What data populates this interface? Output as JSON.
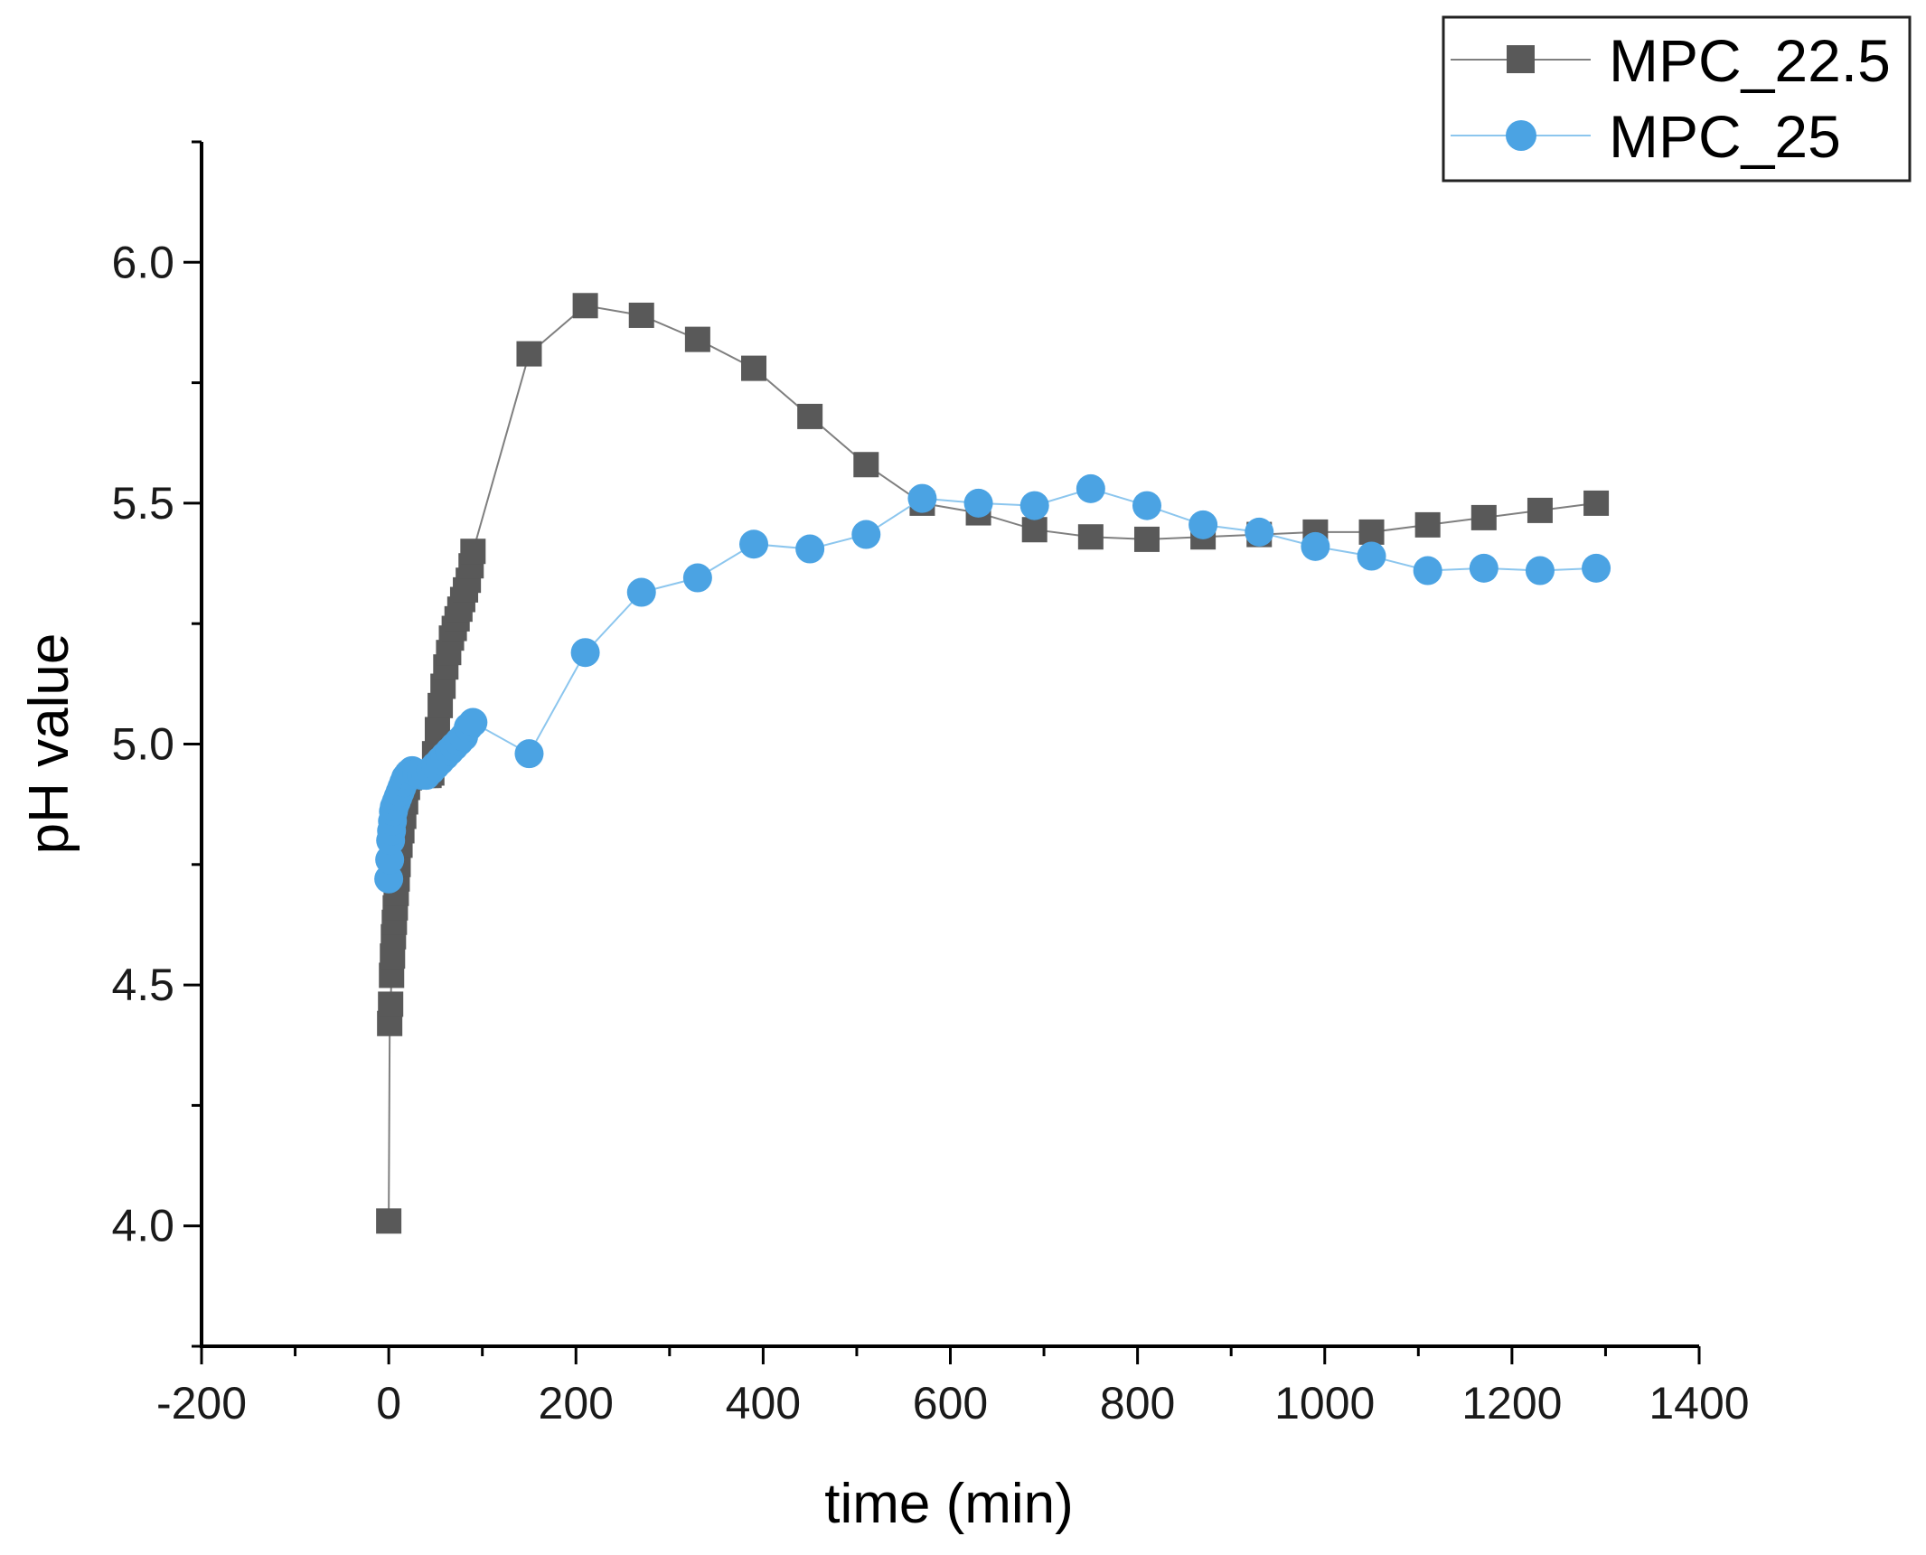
{
  "chart_data": {
    "type": "line",
    "title": "",
    "xlabel": "time (min)",
    "ylabel": "pH value",
    "xlim": [
      -200,
      1400
    ],
    "ylim": [
      3.75,
      6.25
    ],
    "x_ticks": [
      -200,
      0,
      200,
      400,
      600,
      800,
      1000,
      1200,
      1400
    ],
    "x_tick_labels": [
      "-200",
      "0",
      "200",
      "400",
      "600",
      "800",
      "1000",
      "1200",
      "1400"
    ],
    "y_ticks": [
      4.0,
      4.5,
      5.0,
      5.5,
      6.0
    ],
    "y_tick_labels": [
      "4.0",
      "4.5",
      "5.0",
      "5.5",
      "6.0"
    ],
    "grid": false,
    "legend_position": "top-right",
    "series": [
      {
        "name": "MPC_22.5",
        "marker": "square",
        "color": "#595959",
        "line_color": "#7f7f7f",
        "x": [
          0,
          1,
          2,
          3,
          4,
          5,
          6,
          7,
          8,
          9,
          10,
          12,
          14,
          16,
          18,
          20,
          22,
          25,
          28,
          31,
          34,
          37,
          40,
          43,
          46,
          49,
          52,
          55,
          58,
          61,
          64,
          67,
          70,
          73,
          76,
          79,
          82,
          85,
          88,
          90,
          150,
          210,
          270,
          330,
          390,
          450,
          510,
          570,
          630,
          690,
          750,
          810,
          870,
          930,
          990,
          1050,
          1110,
          1170,
          1230,
          1290
        ],
        "y": [
          4.01,
          4.42,
          4.46,
          4.52,
          4.56,
          4.6,
          4.63,
          4.66,
          4.69,
          4.72,
          4.75,
          4.79,
          4.82,
          4.85,
          4.88,
          4.91,
          4.93,
          4.935,
          4.935,
          4.935,
          4.935,
          4.935,
          4.935,
          4.935,
          4.94,
          4.98,
          5.03,
          5.08,
          5.12,
          5.16,
          5.19,
          5.22,
          5.24,
          5.26,
          5.28,
          5.3,
          5.32,
          5.34,
          5.37,
          5.4,
          5.81,
          5.91,
          5.89,
          5.84,
          5.78,
          5.68,
          5.58,
          5.5,
          5.48,
          5.445,
          5.43,
          5.425,
          5.43,
          5.435,
          5.44,
          5.44,
          5.455,
          5.47,
          5.485,
          5.5
        ]
      },
      {
        "name": "MPC_25",
        "marker": "circle",
        "color": "#4ba3e3",
        "line_color": "#8cc6ee",
        "x": [
          0,
          1,
          2,
          3,
          4,
          5,
          6,
          8,
          10,
          12,
          14,
          16,
          18,
          20,
          22,
          25,
          30,
          35,
          40,
          45,
          50,
          55,
          60,
          65,
          70,
          75,
          80,
          85,
          90,
          150,
          210,
          270,
          330,
          390,
          450,
          510,
          570,
          630,
          690,
          750,
          810,
          870,
          930,
          990,
          1050,
          1110,
          1170,
          1230,
          1290
        ],
        "y": [
          4.72,
          4.76,
          4.8,
          4.82,
          4.84,
          4.86,
          4.87,
          4.88,
          4.89,
          4.9,
          4.91,
          4.92,
          4.93,
          4.935,
          4.94,
          4.945,
          4.94,
          4.935,
          4.935,
          4.945,
          4.955,
          4.965,
          4.975,
          4.985,
          4.995,
          5.005,
          5.015,
          5.035,
          5.045,
          4.98,
          5.19,
          5.315,
          5.345,
          5.415,
          5.405,
          5.435,
          5.51,
          5.5,
          5.495,
          5.53,
          5.495,
          5.455,
          5.44,
          5.41,
          5.39,
          5.36,
          5.365,
          5.36,
          5.365
        ]
      }
    ]
  }
}
